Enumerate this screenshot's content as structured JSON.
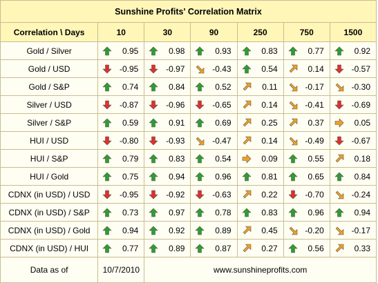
{
  "title": "Sunshine Profits' Correlation Matrix",
  "header": {
    "corner": "Correlation \\ Days",
    "columns": [
      "10",
      "30",
      "90",
      "250",
      "750",
      "1500"
    ]
  },
  "rows": [
    {
      "label": "Gold / Silver",
      "cells": [
        {
          "value": "0.95",
          "arrow": "up"
        },
        {
          "value": "0.98",
          "arrow": "up"
        },
        {
          "value": "0.93",
          "arrow": "up"
        },
        {
          "value": "0.83",
          "arrow": "up"
        },
        {
          "value": "0.77",
          "arrow": "up"
        },
        {
          "value": "0.92",
          "arrow": "up"
        }
      ]
    },
    {
      "label": "Gold / USD",
      "cells": [
        {
          "value": "-0.95",
          "arrow": "down"
        },
        {
          "value": "-0.97",
          "arrow": "down"
        },
        {
          "value": "-0.43",
          "arrow": "down-right"
        },
        {
          "value": "0.54",
          "arrow": "up"
        },
        {
          "value": "0.14",
          "arrow": "up-right"
        },
        {
          "value": "-0.57",
          "arrow": "down"
        }
      ]
    },
    {
      "label": "Gold / S&P",
      "cells": [
        {
          "value": "0.74",
          "arrow": "up"
        },
        {
          "value": "0.84",
          "arrow": "up"
        },
        {
          "value": "0.52",
          "arrow": "up"
        },
        {
          "value": "0.11",
          "arrow": "up-right"
        },
        {
          "value": "-0.17",
          "arrow": "down-right"
        },
        {
          "value": "-0.30",
          "arrow": "down-right"
        }
      ]
    },
    {
      "label": "Silver / USD",
      "cells": [
        {
          "value": "-0.87",
          "arrow": "down"
        },
        {
          "value": "-0.96",
          "arrow": "down"
        },
        {
          "value": "-0.65",
          "arrow": "down"
        },
        {
          "value": "0.14",
          "arrow": "up-right"
        },
        {
          "value": "-0.41",
          "arrow": "down-right"
        },
        {
          "value": "-0.69",
          "arrow": "down"
        }
      ]
    },
    {
      "label": "Silver / S&P",
      "cells": [
        {
          "value": "0.59",
          "arrow": "up"
        },
        {
          "value": "0.91",
          "arrow": "up"
        },
        {
          "value": "0.69",
          "arrow": "up"
        },
        {
          "value": "0.25",
          "arrow": "up-right"
        },
        {
          "value": "0.37",
          "arrow": "up-right"
        },
        {
          "value": "0.05",
          "arrow": "right"
        }
      ]
    },
    {
      "label": "HUI / USD",
      "cells": [
        {
          "value": "-0.80",
          "arrow": "down"
        },
        {
          "value": "-0.93",
          "arrow": "down"
        },
        {
          "value": "-0.47",
          "arrow": "down-right"
        },
        {
          "value": "0.14",
          "arrow": "up-right"
        },
        {
          "value": "-0.49",
          "arrow": "down-right"
        },
        {
          "value": "-0.67",
          "arrow": "down"
        }
      ]
    },
    {
      "label": "HUI / S&P",
      "cells": [
        {
          "value": "0.79",
          "arrow": "up"
        },
        {
          "value": "0.83",
          "arrow": "up"
        },
        {
          "value": "0.54",
          "arrow": "up"
        },
        {
          "value": "0.09",
          "arrow": "right"
        },
        {
          "value": "0.55",
          "arrow": "up"
        },
        {
          "value": "0.18",
          "arrow": "up-right"
        }
      ]
    },
    {
      "label": "HUI / Gold",
      "cells": [
        {
          "value": "0.75",
          "arrow": "up"
        },
        {
          "value": "0.94",
          "arrow": "up"
        },
        {
          "value": "0.96",
          "arrow": "up"
        },
        {
          "value": "0.81",
          "arrow": "up"
        },
        {
          "value": "0.65",
          "arrow": "up"
        },
        {
          "value": "0.84",
          "arrow": "up"
        }
      ]
    },
    {
      "label": "CDNX (in USD) / USD",
      "cells": [
        {
          "value": "-0.95",
          "arrow": "down"
        },
        {
          "value": "-0.92",
          "arrow": "down"
        },
        {
          "value": "-0.63",
          "arrow": "down"
        },
        {
          "value": "0.22",
          "arrow": "up-right"
        },
        {
          "value": "-0.70",
          "arrow": "down"
        },
        {
          "value": "-0.24",
          "arrow": "down-right"
        }
      ]
    },
    {
      "label": "CDNX (in USD) / S&P",
      "cells": [
        {
          "value": "0.73",
          "arrow": "up"
        },
        {
          "value": "0.97",
          "arrow": "up"
        },
        {
          "value": "0.78",
          "arrow": "up"
        },
        {
          "value": "0.83",
          "arrow": "up"
        },
        {
          "value": "0.96",
          "arrow": "up"
        },
        {
          "value": "0.94",
          "arrow": "up"
        }
      ]
    },
    {
      "label": "CDNX (in USD) / Gold",
      "cells": [
        {
          "value": "0.94",
          "arrow": "up"
        },
        {
          "value": "0.92",
          "arrow": "up"
        },
        {
          "value": "0.89",
          "arrow": "up"
        },
        {
          "value": "0.45",
          "arrow": "up-right"
        },
        {
          "value": "-0.20",
          "arrow": "down-right"
        },
        {
          "value": "-0.17",
          "arrow": "down-right"
        }
      ]
    },
    {
      "label": "CDNX (in USD) / HUI",
      "cells": [
        {
          "value": "0.77",
          "arrow": "up"
        },
        {
          "value": "0.89",
          "arrow": "up"
        },
        {
          "value": "0.87",
          "arrow": "up"
        },
        {
          "value": "0.27",
          "arrow": "up-right"
        },
        {
          "value": "0.56",
          "arrow": "up"
        },
        {
          "value": "0.33",
          "arrow": "up-right"
        }
      ]
    }
  ],
  "footer": {
    "label": "Data as of",
    "date": "10/7/2010",
    "site": "www.sunshineprofits.com"
  },
  "arrow_colors": {
    "up": "#2e9e2e",
    "down": "#e0302a",
    "diagonal": "#f0a020"
  }
}
